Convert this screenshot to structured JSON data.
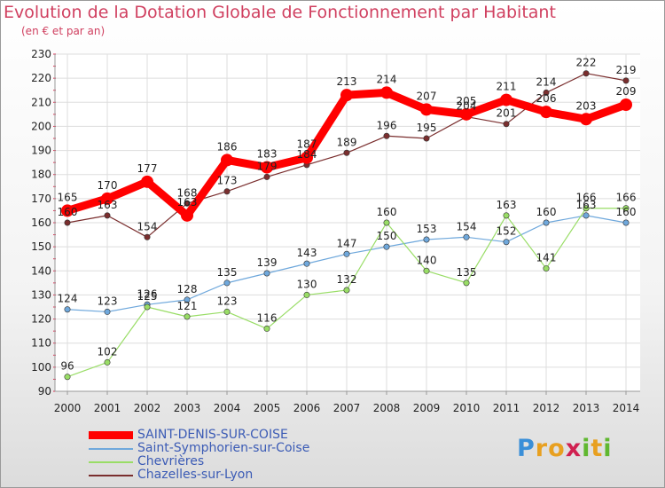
{
  "chart_data": {
    "type": "line",
    "title": "Evolution de la Dotation Globale de Fonctionnement par Habitant",
    "subtitle": "(en € et par an)",
    "categories": [
      "2000",
      "2001",
      "2002",
      "2003",
      "2004",
      "2005",
      "2006",
      "2007",
      "2008",
      "2009",
      "2010",
      "2011",
      "2012",
      "2013",
      "2014"
    ],
    "ylim": [
      90,
      230
    ],
    "yticks": [
      90,
      100,
      110,
      120,
      130,
      140,
      150,
      160,
      170,
      180,
      190,
      200,
      210,
      220,
      230
    ],
    "grid": true,
    "legend_position": "bottom-left",
    "series": [
      {
        "name": "SAINT-DENIS-SUR-COISE",
        "color": "#ff0000",
        "values": [
          165,
          170,
          177,
          163,
          186,
          183,
          187,
          213,
          214,
          207,
          205,
          211,
          206,
          203,
          209
        ]
      },
      {
        "name": "Saint-Symphorien-sur-Coise",
        "color": "#6fa8dc",
        "values": [
          124,
          123,
          126,
          128,
          135,
          139,
          143,
          147,
          150,
          153,
          154,
          152,
          160,
          163,
          160
        ]
      },
      {
        "name": "Chevrières",
        "color": "#99dd66",
        "values": [
          96,
          102,
          125,
          121,
          123,
          116,
          130,
          132,
          160,
          140,
          135,
          163,
          141,
          166,
          166
        ]
      },
      {
        "name": "Chazelles-sur-Lyon",
        "color": "#7a2e2e",
        "values": [
          160,
          163,
          154,
          168,
          173,
          179,
          184,
          189,
          196,
          195,
          204,
          201,
          214,
          222,
          219
        ]
      }
    ]
  },
  "logo": {
    "letters": [
      "P",
      "r",
      "o",
      "x",
      "i",
      "t",
      "i"
    ],
    "colors": [
      "#3a8fd8",
      "#e8a020",
      "#e8a020",
      "#d02050",
      "#60b830",
      "#e8a020",
      "#60b830"
    ]
  }
}
